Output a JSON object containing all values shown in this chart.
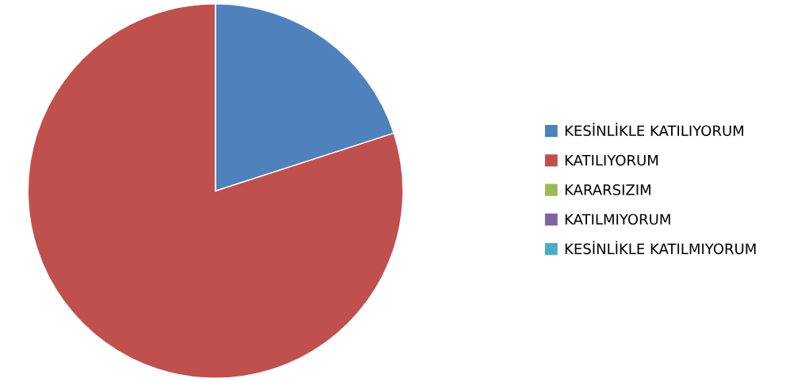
{
  "chart_data": {
    "type": "pie",
    "categories": [
      "KESİNLİKLE KATILIYORUM",
      "KATILIYORUM",
      "KARARSIZIM",
      "KATILMIYORUM",
      "KESİNLİKLE KATILMIYORUM"
    ],
    "values": [
      20,
      80,
      0,
      0,
      0
    ],
    "colors": [
      "#4f81bd",
      "#c0504d",
      "#9bbb59",
      "#8064a2",
      "#4bacc6"
    ],
    "legend": "right"
  }
}
